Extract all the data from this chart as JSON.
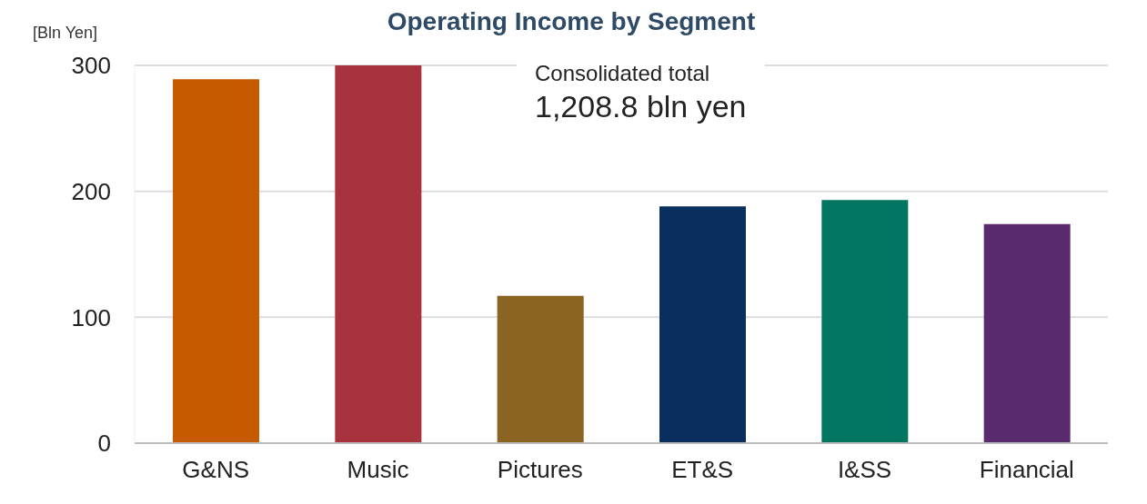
{
  "chart_data": {
    "type": "bar",
    "title": "Operating Income by Segment",
    "ylabel": "[Bln Yen]",
    "categories": [
      "G&NS",
      "Music",
      "Pictures",
      "ET&S",
      "I&SS",
      "Financial"
    ],
    "values": [
      289,
      300,
      117,
      188,
      193,
      174
    ],
    "colors": [
      "#c55a00",
      "#a8333f",
      "#8a6420",
      "#0a2f5e",
      "#007560",
      "#5a2a6e"
    ],
    "ylim": [
      0,
      300
    ],
    "yticks": [
      0,
      100,
      200,
      300
    ],
    "grid": "y",
    "annotations": [
      "Consolidated total",
      "1,208.8 bln yen"
    ]
  }
}
